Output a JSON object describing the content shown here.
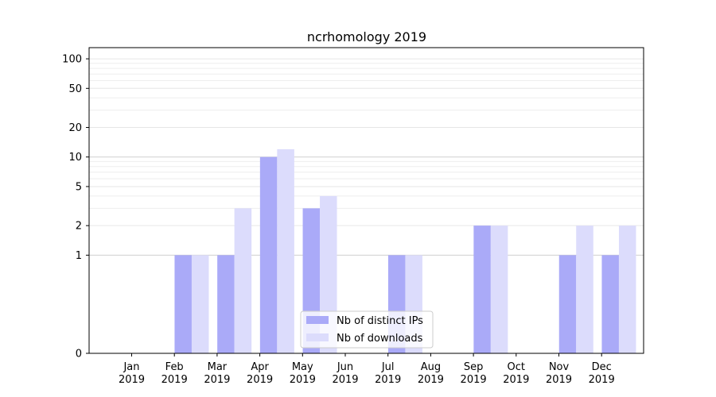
{
  "chart_data": {
    "type": "bar",
    "title": "ncrhomology 2019",
    "xlabel": "",
    "ylabel": "",
    "y_scale": "symlog",
    "ylim": [
      0,
      130
    ],
    "y_ticks": [
      0,
      1,
      2,
      5,
      10,
      20,
      50,
      100
    ],
    "grid": "horizontal",
    "legend_position": "bottom-center",
    "categories": [
      "Jan",
      "Feb",
      "Mar",
      "Apr",
      "May",
      "Jun",
      "Jul",
      "Aug",
      "Sep",
      "Oct",
      "Nov",
      "Dec"
    ],
    "category_year": "2019",
    "series": [
      {
        "name": "Nb of distinct IPs",
        "color": "#aaaaf8",
        "values": [
          0,
          1,
          1,
          10,
          3,
          0,
          1,
          0,
          2,
          0,
          1,
          1
        ]
      },
      {
        "name": "Nb of downloads",
        "color": "#dcdcfc",
        "values": [
          0,
          1,
          3,
          12,
          4,
          0,
          1,
          0,
          2,
          0,
          2,
          2
        ]
      }
    ]
  }
}
